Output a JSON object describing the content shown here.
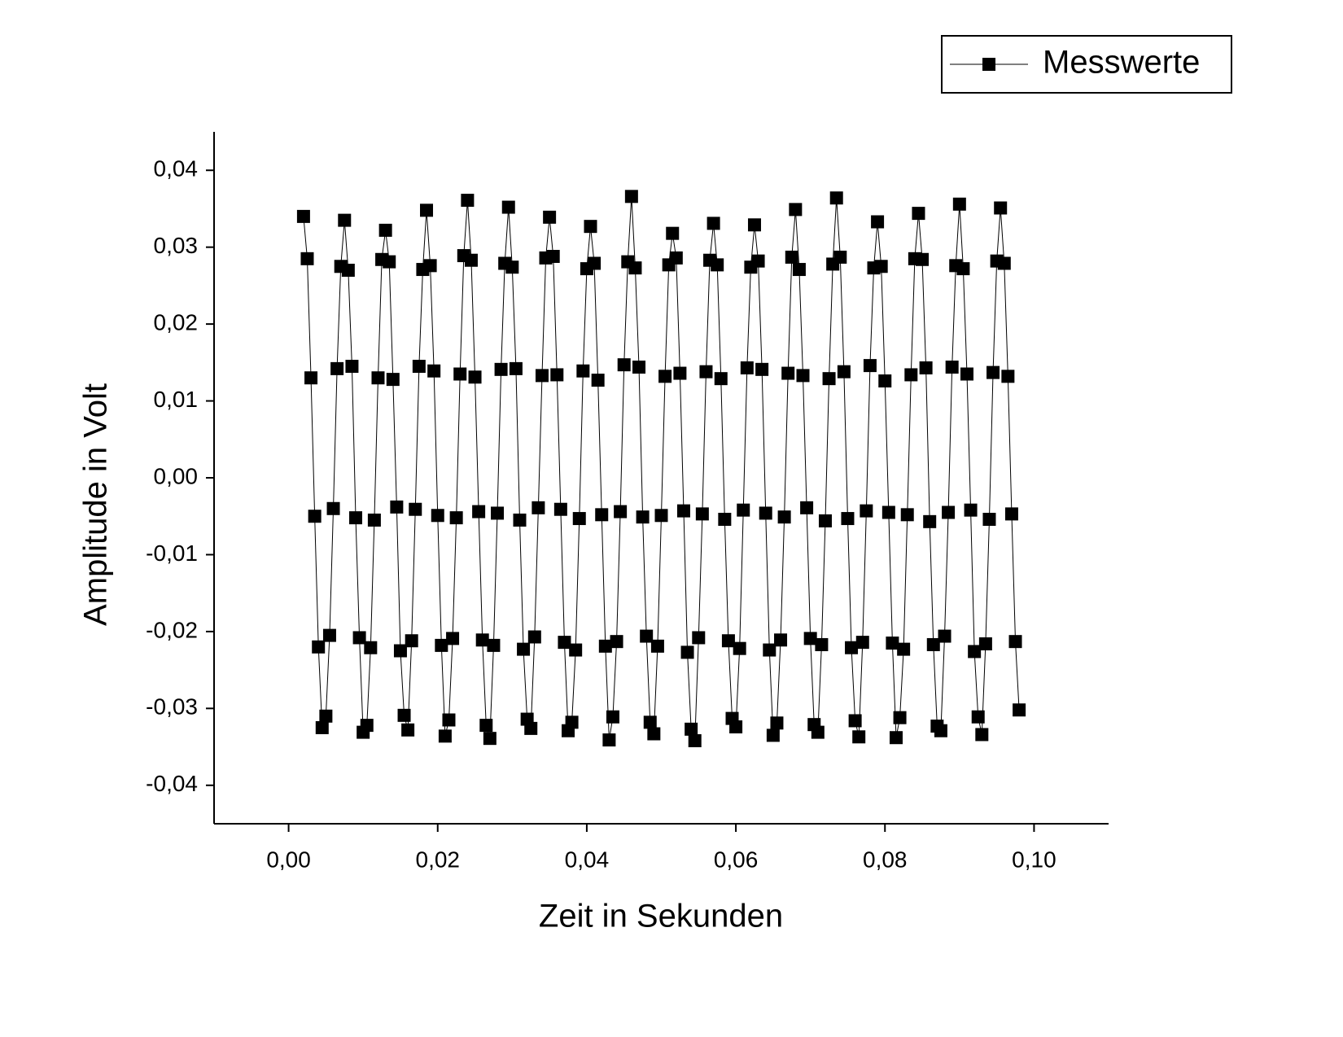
{
  "chart_data": {
    "type": "line",
    "x_label": "Zeit in Sekunden",
    "y_label": "Amplitude in Volt",
    "legend": "top-right",
    "xlim": [
      -0.01,
      0.11
    ],
    "ylim": [
      -0.045,
      0.045
    ],
    "xticks": [
      {
        "value": 0,
        "label": "0,00"
      },
      {
        "value": 0.02,
        "label": "0,02"
      },
      {
        "value": 0.04,
        "label": "0,04"
      },
      {
        "value": 0.06,
        "label": "0,06"
      },
      {
        "value": 0.08,
        "label": "0,08"
      },
      {
        "value": 0.1,
        "label": "0,10"
      }
    ],
    "yticks": [
      {
        "value": -0.04,
        "label": "-0,04"
      },
      {
        "value": -0.03,
        "label": "-0,03"
      },
      {
        "value": -0.02,
        "label": "-0,02"
      },
      {
        "value": -0.01,
        "label": "-0,01"
      },
      {
        "value": 0,
        "label": "0,00"
      },
      {
        "value": 0.01,
        "label": "0,01"
      },
      {
        "value": 0.02,
        "label": "0,02"
      },
      {
        "value": 0.03,
        "label": "0,03"
      },
      {
        "value": 0.04,
        "label": "0,04"
      }
    ],
    "x": [
      0.002,
      0.0025,
      0.003,
      0.0035,
      0.004,
      0.0045,
      0.005,
      0.0055,
      0.006,
      0.0065,
      0.007,
      0.0075,
      0.008,
      0.0085,
      0.009,
      0.0095,
      0.01,
      0.0105,
      0.011,
      0.0115,
      0.012,
      0.0125,
      0.013,
      0.0135,
      0.014,
      0.0145,
      0.015,
      0.0155,
      0.016,
      0.0165,
      0.017,
      0.0175,
      0.018,
      0.0185,
      0.019,
      0.0195,
      0.02,
      0.0205,
      0.021,
      0.0215,
      0.022,
      0.0225,
      0.023,
      0.0235,
      0.024,
      0.0245,
      0.025,
      0.0255,
      0.026,
      0.0265,
      0.027,
      0.0275,
      0.028,
      0.0285,
      0.029,
      0.0295,
      0.03,
      0.0305,
      0.031,
      0.0315,
      0.032,
      0.0325,
      0.033,
      0.0335,
      0.034,
      0.0345,
      0.035,
      0.0355,
      0.036,
      0.0365,
      0.037,
      0.0375,
      0.038,
      0.0385,
      0.039,
      0.0395,
      0.04,
      0.0405,
      0.041,
      0.0415,
      0.042,
      0.0425,
      0.043,
      0.0435,
      0.044,
      0.0445,
      0.045,
      0.0455,
      0.046,
      0.0465,
      0.047,
      0.0475,
      0.048,
      0.0485,
      0.049,
      0.0495,
      0.05,
      0.0505,
      0.051,
      0.0515,
      0.052,
      0.0525,
      0.053,
      0.0535,
      0.054,
      0.0545,
      0.055,
      0.0555,
      0.056,
      0.0565,
      0.057,
      0.0575,
      0.058,
      0.0585,
      0.059,
      0.0595,
      0.06,
      0.0605,
      0.061,
      0.0615,
      0.062,
      0.0625,
      0.063,
      0.0635,
      0.064,
      0.0645,
      0.065,
      0.0655,
      0.066,
      0.0665,
      0.067,
      0.0675,
      0.068,
      0.0685,
      0.069,
      0.0695,
      0.07,
      0.0705,
      0.071,
      0.0715,
      0.072,
      0.0725,
      0.073,
      0.0735,
      0.074,
      0.0745,
      0.075,
      0.0755,
      0.076,
      0.0765,
      0.077,
      0.0775,
      0.078,
      0.0785,
      0.079,
      0.0795,
      0.08,
      0.0805,
      0.081,
      0.0815,
      0.082,
      0.0825,
      0.083,
      0.0835,
      0.084,
      0.0845,
      0.085,
      0.0855,
      0.086,
      0.0865,
      0.087,
      0.0875,
      0.088,
      0.0885,
      0.089,
      0.0895,
      0.09,
      0.0905,
      0.091,
      0.0915,
      0.092,
      0.0925,
      0.093,
      0.0935,
      0.094,
      0.0945,
      0.095,
      0.0955,
      0.096,
      0.0965,
      0.097,
      0.0975,
      0.098
    ],
    "series": [
      {
        "name": "Messwerte",
        "color": "#000000",
        "values": [
          0.034,
          0.0285,
          0.013,
          -0.005,
          -0.022,
          -0.0325,
          -0.031,
          -0.0205,
          -0.004,
          0.0142,
          0.0275,
          0.0335,
          0.027,
          0.0145,
          -0.0052,
          -0.0208,
          -0.0331,
          -0.0322,
          -0.0221,
          -0.0055,
          0.013,
          0.0284,
          0.0322,
          0.0281,
          0.0128,
          -0.0038,
          -0.0225,
          -0.0309,
          -0.0328,
          -0.0212,
          -0.0041,
          0.0145,
          0.0271,
          0.0348,
          0.0276,
          0.0139,
          -0.0049,
          -0.0218,
          -0.0336,
          -0.0315,
          -0.0209,
          -0.0052,
          0.0135,
          0.0289,
          0.0361,
          0.0283,
          0.0131,
          -0.0044,
          -0.0211,
          -0.0322,
          -0.0339,
          -0.0218,
          -0.0046,
          0.0141,
          0.0279,
          0.0352,
          0.0274,
          0.0142,
          -0.0055,
          -0.0223,
          -0.0314,
          -0.0326,
          -0.0207,
          -0.0039,
          0.0133,
          0.0286,
          0.0339,
          0.0288,
          0.0134,
          -0.0041,
          -0.0214,
          -0.0329,
          -0.0318,
          -0.0224,
          -0.0053,
          0.0139,
          0.0272,
          0.0327,
          0.0279,
          0.0127,
          -0.0048,
          -0.0219,
          -0.0341,
          -0.0311,
          -0.0213,
          -0.0044,
          0.0147,
          0.0281,
          0.0366,
          0.0273,
          0.0144,
          -0.0051,
          -0.0206,
          -0.0318,
          -0.0333,
          -0.0219,
          -0.0049,
          0.0132,
          0.0277,
          0.0318,
          0.0286,
          0.0136,
          -0.0043,
          -0.0227,
          -0.0327,
          -0.0342,
          -0.0208,
          -0.0047,
          0.0138,
          0.0283,
          0.0331,
          0.0277,
          0.0129,
          -0.0054,
          -0.0212,
          -0.0313,
          -0.0324,
          -0.0222,
          -0.0042,
          0.0143,
          0.0274,
          0.0329,
          0.0282,
          0.0141,
          -0.0046,
          -0.0224,
          -0.0335,
          -0.0319,
          -0.0211,
          -0.0051,
          0.0136,
          0.0287,
          0.0349,
          0.0271,
          0.0133,
          -0.0039,
          -0.0209,
          -0.0321,
          -0.0331,
          -0.0217,
          -0.0056,
          0.0129,
          0.0278,
          0.0364,
          0.0287,
          0.0138,
          -0.0053,
          -0.0221,
          -0.0316,
          -0.0337,
          -0.0214,
          -0.0043,
          0.0146,
          0.0273,
          0.0333,
          0.0275,
          0.0126,
          -0.0045,
          -0.0215,
          -0.0338,
          -0.0312,
          -0.0223,
          -0.0048,
          0.0134,
          0.0285,
          0.0344,
          0.0284,
          0.0143,
          -0.0057,
          -0.0217,
          -0.0323,
          -0.0329,
          -0.0206,
          -0.0045,
          0.0144,
          0.0276,
          0.0356,
          0.0272,
          0.0135,
          -0.0042,
          -0.0226,
          -0.0311,
          -0.0334,
          -0.0216,
          -0.0054,
          0.0137,
          0.0282,
          0.0351,
          0.0279,
          0.0132,
          -0.0047,
          -0.0213,
          -0.0302
        ]
      }
    ]
  }
}
